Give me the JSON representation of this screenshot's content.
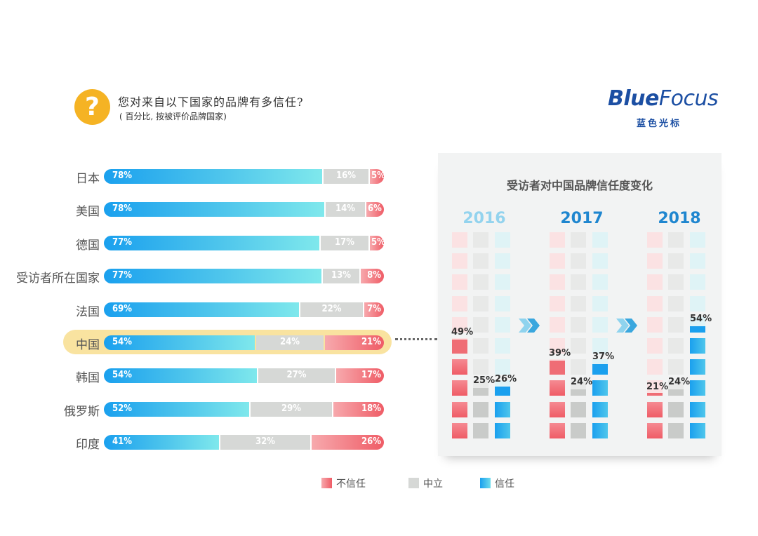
{
  "header": {
    "icon": "question-icon",
    "icon_glyph": "?",
    "title": "您对来自以下国家的品牌有多信任?",
    "subtitle": "( 百分比, 按被评价品牌国家)"
  },
  "logo": {
    "main_bold": "Blue",
    "main_thin": "Focus",
    "sub": "蓝色光标"
  },
  "colors": {
    "trust": "#1aa0ee",
    "neutral": "#d6d8d6",
    "distrust": "#ef5c66",
    "highlight": "#f9e3a0",
    "logo": "#1c4fa3"
  },
  "chart_data": [
    {
      "type": "bar",
      "stacked": true,
      "orientation": "horizontal",
      "title": "您对来自以下国家的品牌有多信任?",
      "subtitle": "( 百分比, 按被评价品牌国家)",
      "categories": [
        "日本",
        "美国",
        "德国",
        "受访者所在国家",
        "法国",
        "中国",
        "韩国",
        "俄罗斯",
        "印度"
      ],
      "highlight": "中国",
      "unit": "%",
      "series": [
        {
          "name": "信任",
          "values": [
            78,
            78,
            77,
            77,
            69,
            54,
            54,
            52,
            41
          ]
        },
        {
          "name": "中立",
          "values": [
            16,
            14,
            17,
            13,
            22,
            24,
            27,
            29,
            32
          ]
        },
        {
          "name": "不信任",
          "values": [
            5,
            6,
            5,
            8,
            7,
            21,
            17,
            18,
            26
          ]
        }
      ]
    },
    {
      "type": "bar",
      "title": "受访者对中国品牌信任度变化",
      "categories": [
        "2016",
        "2017",
        "2018"
      ],
      "unit": "%",
      "series": [
        {
          "name": "不信任",
          "values": [
            49,
            39,
            21
          ]
        },
        {
          "name": "中立",
          "values": [
            25,
            24,
            24
          ]
        },
        {
          "name": "信任",
          "values": [
            26,
            37,
            54
          ]
        }
      ]
    }
  ],
  "legend": [
    {
      "label": "不信任",
      "color": "#ef6d75"
    },
    {
      "label": "中立",
      "color": "#d6d8d6"
    },
    {
      "label": "信任",
      "color": "#1aa0ee"
    }
  ]
}
